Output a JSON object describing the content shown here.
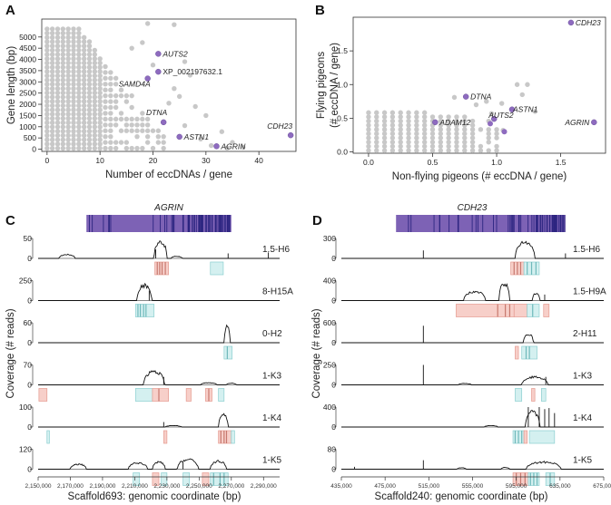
{
  "panels": {
    "A": "A",
    "B": "B",
    "C": "C",
    "D": "D"
  },
  "colors": {
    "dot_grey": "#c8c8c8",
    "dot_purple": "#8e6bbf",
    "gene_bar": "#7d62b5",
    "gene_stripe": "#2c2580",
    "coverage": "#111111",
    "region_pink": "#f7cfc9",
    "region_cyan": "#d4f0f0"
  },
  "chart_data": [
    {
      "id": "A",
      "type": "scatter",
      "xlabel": "Number of eccDNAs / gene",
      "ylabel": "Gene length (bp)",
      "xlim": [
        -1,
        47
      ],
      "ylim": [
        -100,
        5800
      ],
      "xticks": [
        "0",
        "10",
        "20",
        "30",
        "40"
      ],
      "yticks": [
        "0",
        "500",
        "1000",
        "1500",
        "2000",
        "2500",
        "3000",
        "3500",
        "4000",
        "4500",
        "5000"
      ],
      "highlighted": [
        {
          "label": "AUTS2",
          "x": 21,
          "y": 4250,
          "italic": true
        },
        {
          "label": "XP_002197632.1",
          "x": 21,
          "y": 3450,
          "italic": false
        },
        {
          "label": "SAMD4A",
          "x": 19,
          "y": 3150,
          "italic": true
        },
        {
          "label": "DTNA",
          "x": 22,
          "y": 1200,
          "italic": true
        },
        {
          "label": "ASTN1",
          "x": 25,
          "y": 550,
          "italic": true
        },
        {
          "label": "AGRIN",
          "x": 32,
          "y": 130,
          "italic": true
        },
        {
          "label": "CDH23",
          "x": 46,
          "y": 620,
          "italic": true
        }
      ],
      "grey_extra": [
        {
          "x": 19,
          "y": 5600
        },
        {
          "x": 24,
          "y": 5550
        },
        {
          "x": 18,
          "y": 4750
        },
        {
          "x": 16,
          "y": 4500
        },
        {
          "x": 26,
          "y": 3900
        },
        {
          "x": 27,
          "y": 3300
        },
        {
          "x": 24,
          "y": 2700
        },
        {
          "x": 25,
          "y": 2350
        },
        {
          "x": 28,
          "y": 1900
        },
        {
          "x": 30,
          "y": 1500
        },
        {
          "x": 26,
          "y": 1050
        },
        {
          "x": 33,
          "y": 780
        },
        {
          "x": 29,
          "y": 450
        },
        {
          "x": 35,
          "y": 300
        },
        {
          "x": 31,
          "y": 160
        },
        {
          "x": 34,
          "y": 50
        },
        {
          "x": 37,
          "y": 80
        },
        {
          "x": 23,
          "y": 2050
        },
        {
          "x": 20,
          "y": 3750
        }
      ]
    },
    {
      "id": "B",
      "type": "scatter",
      "xlabel": "Non-flying pigeons (# eccDNA / gene)",
      "ylabel": "Flying pigeons\n(# eccDNA / gene)",
      "ylabel_lines": [
        "Flying pigeons",
        "(# eccDNA / gene)"
      ],
      "xlim": [
        -0.12,
        1.85
      ],
      "ylim": [
        -0.02,
        2.0
      ],
      "xticks": [
        "0.0",
        "0.5",
        "1.0",
        "1.5"
      ],
      "yticks": [
        "0.0",
        "0.5",
        "1.0",
        "1.5"
      ],
      "highlighted": [
        {
          "label": "CDH23",
          "x": 1.58,
          "y": 1.92
        },
        {
          "label": "AGRIN",
          "x": 1.76,
          "y": 0.44
        },
        {
          "label": "DTNA",
          "x": 0.76,
          "y": 0.82
        },
        {
          "label": "ASTN1",
          "x": 1.12,
          "y": 0.63
        },
        {
          "label": "AUTS2",
          "x": 0.98,
          "y": 0.49
        },
        {
          "label": "ADAM12",
          "x": 0.52,
          "y": 0.44
        }
      ],
      "grey_extra": [
        {
          "x": 1.16,
          "y": 1.0
        },
        {
          "x": 1.24,
          "y": 1.0
        },
        {
          "x": 1.2,
          "y": 0.85
        },
        {
          "x": 0.67,
          "y": 0.81
        },
        {
          "x": 0.84,
          "y": 0.7
        },
        {
          "x": 0.92,
          "y": 0.75
        },
        {
          "x": 1.04,
          "y": 0.72
        },
        {
          "x": 1.3,
          "y": 0.6
        },
        {
          "x": 1.0,
          "y": 0.27
        },
        {
          "x": 0.96,
          "y": 0.57
        },
        {
          "x": 1.05,
          "y": 0.32
        }
      ]
    },
    {
      "id": "C",
      "type": "line",
      "gene": "AGRIN",
      "ylabel": "Coverage (# reads)",
      "xlabel": "Scaffold693: genomic coordinate (bp)",
      "xlim": [
        2150000,
        2300000
      ],
      "xticks": [
        "2,150,000",
        "2,170,000",
        "2,190,000",
        "2,210,000",
        "2,230,000",
        "2,250,000",
        "2,270,000",
        "2,290,000"
      ],
      "gene_span": [
        2180000,
        2270000
      ],
      "tracks": [
        {
          "sample": "1.5-H6",
          "ymax": "50",
          "ymin": "0",
          "ymax_val": 50,
          "peaks": [
            {
              "c": 2168000,
              "w": 5000,
              "h": 0.22
            },
            {
              "c": 2226000,
              "w": 4000,
              "h": 0.95
            },
            {
              "c": 2236000,
              "w": 3500,
              "h": 0.12
            }
          ],
          "spikes": [
            {
              "x": 2223000,
              "h": 0.45
            },
            {
              "x": 2268000,
              "h": 0.25
            },
            {
              "x": 2293000,
              "h": 0.3
            }
          ],
          "regions": [
            {
              "x1": 2222500,
              "x2": 2231000,
              "c": "pink",
              "lines": [
                2224000,
                2225500,
                2227000,
                2229000
              ]
            },
            {
              "x1": 2257000,
              "x2": 2265000,
              "c": "cyan",
              "lines": []
            }
          ]
        },
        {
          "sample": "8-H15A",
          "ymax": "250",
          "ymin": "0",
          "ymax_val": 250,
          "peaks": [
            {
              "c": 2216000,
              "w": 4500,
              "h": 0.85
            }
          ],
          "spikes": [
            {
              "x": 2219000,
              "h": 0.5
            }
          ],
          "regions": [
            {
              "x1": 2210500,
              "x2": 2222000,
              "c": "cyan",
              "lines": [
                2212000,
                2213500,
                2215500,
                2217000
              ]
            }
          ]
        },
        {
          "sample": "0-H2",
          "ymax": "60",
          "ymin": "0",
          "ymax_val": 60,
          "peaks": [
            {
              "c": 2267500,
              "w": 1800,
              "h": 0.9
            }
          ],
          "spikes": [],
          "regions": [
            {
              "x1": 2265500,
              "x2": 2270500,
              "c": "cyan",
              "lines": [
                2267500
              ]
            }
          ]
        },
        {
          "sample": "1-K3",
          "ymax": "70",
          "ymin": "0",
          "ymax_val": 70,
          "peaks": [
            {
              "c": 2222000,
              "w": 6500,
              "h": 0.75
            },
            {
              "c": 2256000,
              "w": 5000,
              "h": 0.12
            },
            {
              "c": 2270000,
              "w": 3000,
              "h": 0.1
            }
          ],
          "spikes": [
            {
              "x": 2228000,
              "h": 0.4
            }
          ],
          "regions": [
            {
              "x1": 2150500,
              "x2": 2155500,
              "c": "pink",
              "lines": []
            },
            {
              "x1": 2210500,
              "x2": 2221000,
              "c": "cyan",
              "lines": []
            },
            {
              "x1": 2221000,
              "x2": 2231000,
              "c": "pink",
              "lines": [
                2225000
              ]
            },
            {
              "x1": 2242000,
              "x2": 2245000,
              "c": "pink",
              "lines": []
            },
            {
              "x1": 2254000,
              "x2": 2258000,
              "c": "pink",
              "lines": [
                2256000
              ]
            },
            {
              "x1": 2262000,
              "x2": 2265500,
              "c": "cyan",
              "lines": []
            }
          ]
        },
        {
          "sample": "1-K4",
          "ymax": "100",
          "ymin": "0",
          "ymax_val": 100,
          "peaks": [
            {
              "c": 2265000,
              "w": 3000,
              "h": 0.7
            },
            {
              "c": 2234000,
              "w": 5000,
              "h": 0.08
            }
          ],
          "spikes": [
            {
              "x": 2228000,
              "h": 0.25
            }
          ],
          "regions": [
            {
              "x1": 2155500,
              "x2": 2157000,
              "c": "cyan",
              "lines": []
            },
            {
              "x1": 2228000,
              "x2": 2230000,
              "c": "pink",
              "lines": []
            },
            {
              "x1": 2262000,
              "x2": 2270000,
              "c": "pink",
              "lines": [
                2263500,
                2265500,
                2267000
              ]
            },
            {
              "x1": 2270000,
              "x2": 2272000,
              "c": "cyan",
              "lines": []
            }
          ]
        },
        {
          "sample": "1-K5",
          "ymax": "120",
          "ymin": "0",
          "ymax_val": 120,
          "peaks": [
            {
              "c": 2175000,
              "w": 5000,
              "h": 0.28
            },
            {
              "c": 2212000,
              "w": 6000,
              "h": 0.35
            },
            {
              "c": 2225000,
              "w": 4000,
              "h": 0.4
            },
            {
              "c": 2243000,
              "w": 6500,
              "h": 0.55
            },
            {
              "c": 2262000,
              "w": 5000,
              "h": 0.45
            }
          ],
          "spikes": [
            {
              "x": 2240000,
              "h": 0.35
            }
          ],
          "regions": [
            {
              "x1": 2209000,
              "x2": 2213000,
              "c": "cyan",
              "lines": []
            },
            {
              "x1": 2221000,
              "x2": 2225000,
              "c": "pink",
              "lines": []
            },
            {
              "x1": 2226500,
              "x2": 2230000,
              "c": "cyan",
              "lines": []
            },
            {
              "x1": 2240000,
              "x2": 2244000,
              "c": "cyan",
              "lines": []
            },
            {
              "x1": 2252000,
              "x2": 2256000,
              "c": "pink",
              "lines": []
            },
            {
              "x1": 2257000,
              "x2": 2268000,
              "c": "cyan",
              "lines": [
                2259000,
                2263000,
                2265500
              ]
            }
          ]
        }
      ]
    },
    {
      "id": "D",
      "type": "line",
      "gene": "CDH23",
      "ylabel": "Coverage (# reads)",
      "xlabel": "Scaffold240: genomic coordinate (bp)",
      "xlim": [
        435000,
        675000
      ],
      "xticks": [
        "435,000",
        "475,000",
        "515,000",
        "555,000",
        "595,000",
        "635,000",
        "675,000"
      ],
      "gene_span": [
        485000,
        640000
      ],
      "tracks": [
        {
          "sample": "1.5-H6",
          "ymax": "300",
          "ymin": "0",
          "ymax_val": 300,
          "peaks": [
            {
              "c": 603000,
              "w": 9000,
              "h": 0.9
            }
          ],
          "spikes": [
            {
              "x": 510000,
              "h": 0.4
            },
            {
              "x": 640000,
              "h": 0.25
            }
          ],
          "regions": [
            {
              "x1": 590000,
              "x2": 602000,
              "c": "pink",
              "lines": [
                593000,
                596000,
                599000
              ]
            },
            {
              "x1": 602000,
              "x2": 616000,
              "c": "cyan",
              "lines": [
                605000,
                609000,
                613000
              ]
            }
          ]
        },
        {
          "sample": "1.5-H9A",
          "ymax": "400",
          "ymin": "0",
          "ymax_val": 400,
          "peaks": [
            {
              "c": 557000,
              "w": 10000,
              "h": 0.5
            },
            {
              "c": 584000,
              "w": 5000,
              "h": 0.95
            },
            {
              "c": 613000,
              "w": 3500,
              "h": 0.4
            }
          ],
          "spikes": [
            {
              "x": 621000,
              "h": 0.3
            }
          ],
          "regions": [
            {
              "x1": 540000,
              "x2": 593000,
              "c": "pink",
              "lines": [
                578000,
                585000,
                589000
              ]
            },
            {
              "x1": 593000,
              "x2": 605000,
              "c": "pink",
              "lines": []
            },
            {
              "x1": 605000,
              "x2": 616000,
              "c": "cyan",
              "lines": [
                610000
              ]
            },
            {
              "x1": 620000,
              "x2": 625000,
              "c": "pink",
              "lines": []
            }
          ]
        },
        {
          "sample": "2-H11",
          "ymax": "600",
          "ymin": "0",
          "ymax_val": 600,
          "peaks": [
            {
              "c": 606000,
              "w": 4500,
              "h": 0.5
            }
          ],
          "spikes": [
            {
              "x": 510000,
              "h": 0.85
            }
          ],
          "regions": [
            {
              "x1": 594000,
              "x2": 597000,
              "c": "pink",
              "lines": []
            },
            {
              "x1": 600000,
              "x2": 614000,
              "c": "cyan",
              "lines": [
                604000,
                607000
              ]
            }
          ]
        },
        {
          "sample": "1-K3",
          "ymax": "250",
          "ymin": "0",
          "ymax_val": 250,
          "peaks": [
            {
              "c": 612000,
              "w": 12000,
              "h": 0.45
            },
            {
              "c": 548000,
              "w": 6000,
              "h": 0.08
            }
          ],
          "spikes": [
            {
              "x": 510000,
              "h": 1.0
            },
            {
              "x": 622000,
              "h": 0.4
            }
          ],
          "regions": [
            {
              "x1": 594000,
              "x2": 600000,
              "c": "cyan",
              "lines": []
            },
            {
              "x1": 609000,
              "x2": 612000,
              "c": "pink",
              "lines": []
            },
            {
              "x1": 618000,
              "x2": 622000,
              "c": "cyan",
              "lines": []
            }
          ]
        },
        {
          "sample": "1-K4",
          "ymax": "400",
          "ymin": "0",
          "ymax_val": 400,
          "peaks": [
            {
              "c": 610000,
              "w": 6500,
              "h": 0.85
            },
            {
              "c": 572000,
              "w": 6000,
              "h": 0.08
            }
          ],
          "spikes": [
            {
              "x": 606000,
              "h": 1.0
            },
            {
              "x": 616000,
              "h": 1.0
            },
            {
              "x": 621000,
              "h": 0.9
            },
            {
              "x": 625000,
              "h": 0.95
            },
            {
              "x": 630000,
              "h": 0.7
            }
          ],
          "regions": [
            {
              "x1": 592000,
              "x2": 602000,
              "c": "cyan",
              "lines": [
                594000,
                597000,
                600000
              ]
            },
            {
              "x1": 602000,
              "x2": 605000,
              "c": "pink",
              "lines": []
            },
            {
              "x1": 607000,
              "x2": 630000,
              "c": "cyan",
              "lines": []
            }
          ]
        },
        {
          "sample": "1-K5",
          "ymax": "80",
          "ymin": "0",
          "ymax_val": 80,
          "peaks": [
            {
              "c": 620000,
              "w": 16000,
              "h": 0.4
            },
            {
              "c": 545000,
              "w": 4000,
              "h": 0.08
            },
            {
              "c": 585000,
              "w": 4000,
              "h": 0.1
            }
          ],
          "spikes": [
            {
              "x": 510000,
              "h": 0.45
            },
            {
              "x": 447000,
              "h": 0.12
            }
          ],
          "regions": [
            {
              "x1": 592000,
              "x2": 606000,
              "c": "pink",
              "lines": [
                595000,
                599000,
                603000
              ]
            },
            {
              "x1": 606000,
              "x2": 616000,
              "c": "cyan",
              "lines": [
                608000,
                611000,
                614000
              ]
            },
            {
              "x1": 622000,
              "x2": 630000,
              "c": "cyan",
              "lines": [
                626000
              ]
            }
          ]
        }
      ]
    }
  ]
}
